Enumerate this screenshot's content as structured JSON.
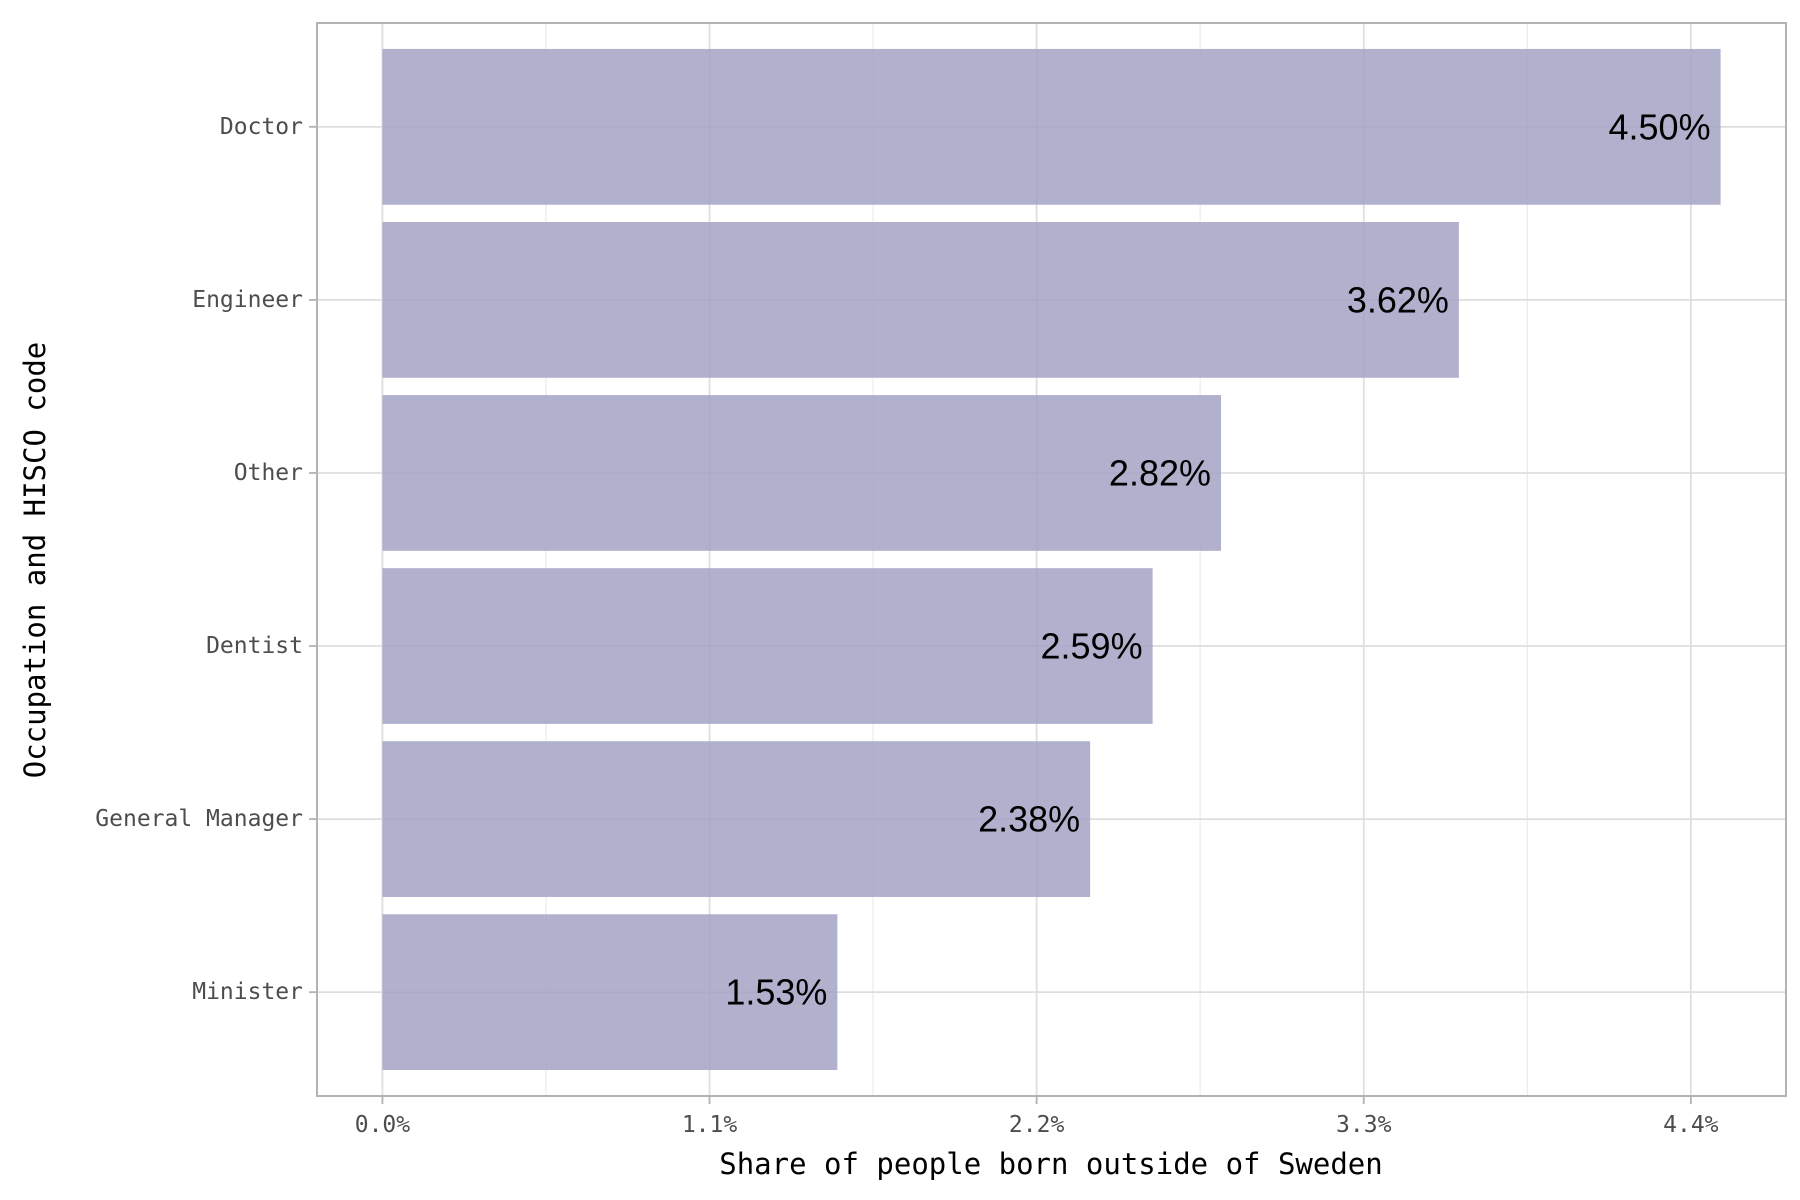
{
  "chart_data": {
    "type": "bar",
    "orientation": "horizontal",
    "categories": [
      "Doctor",
      "Engineer",
      "Other",
      "Dentist",
      "General Manager",
      "Minister"
    ],
    "values": [
      4.5,
      3.62,
      2.82,
      2.59,
      2.38,
      1.53
    ],
    "value_labels": [
      "4.50%",
      "3.62%",
      "2.82%",
      "2.59%",
      "2.38%",
      "1.53%"
    ],
    "xlabel": "Share of people born outside of Sweden",
    "ylabel": "Occupation and HISCO code",
    "x_ticks": [
      0,
      1.1,
      2.2,
      3.3,
      4.4
    ],
    "x_tick_labels": [
      "0.0%",
      "1.1%",
      "2.2%",
      "3.3%",
      "4.4%"
    ],
    "xlim": [
      -0.22,
      4.72
    ],
    "grid": true,
    "legend": "none",
    "bar_color": "#a3a3c6"
  }
}
